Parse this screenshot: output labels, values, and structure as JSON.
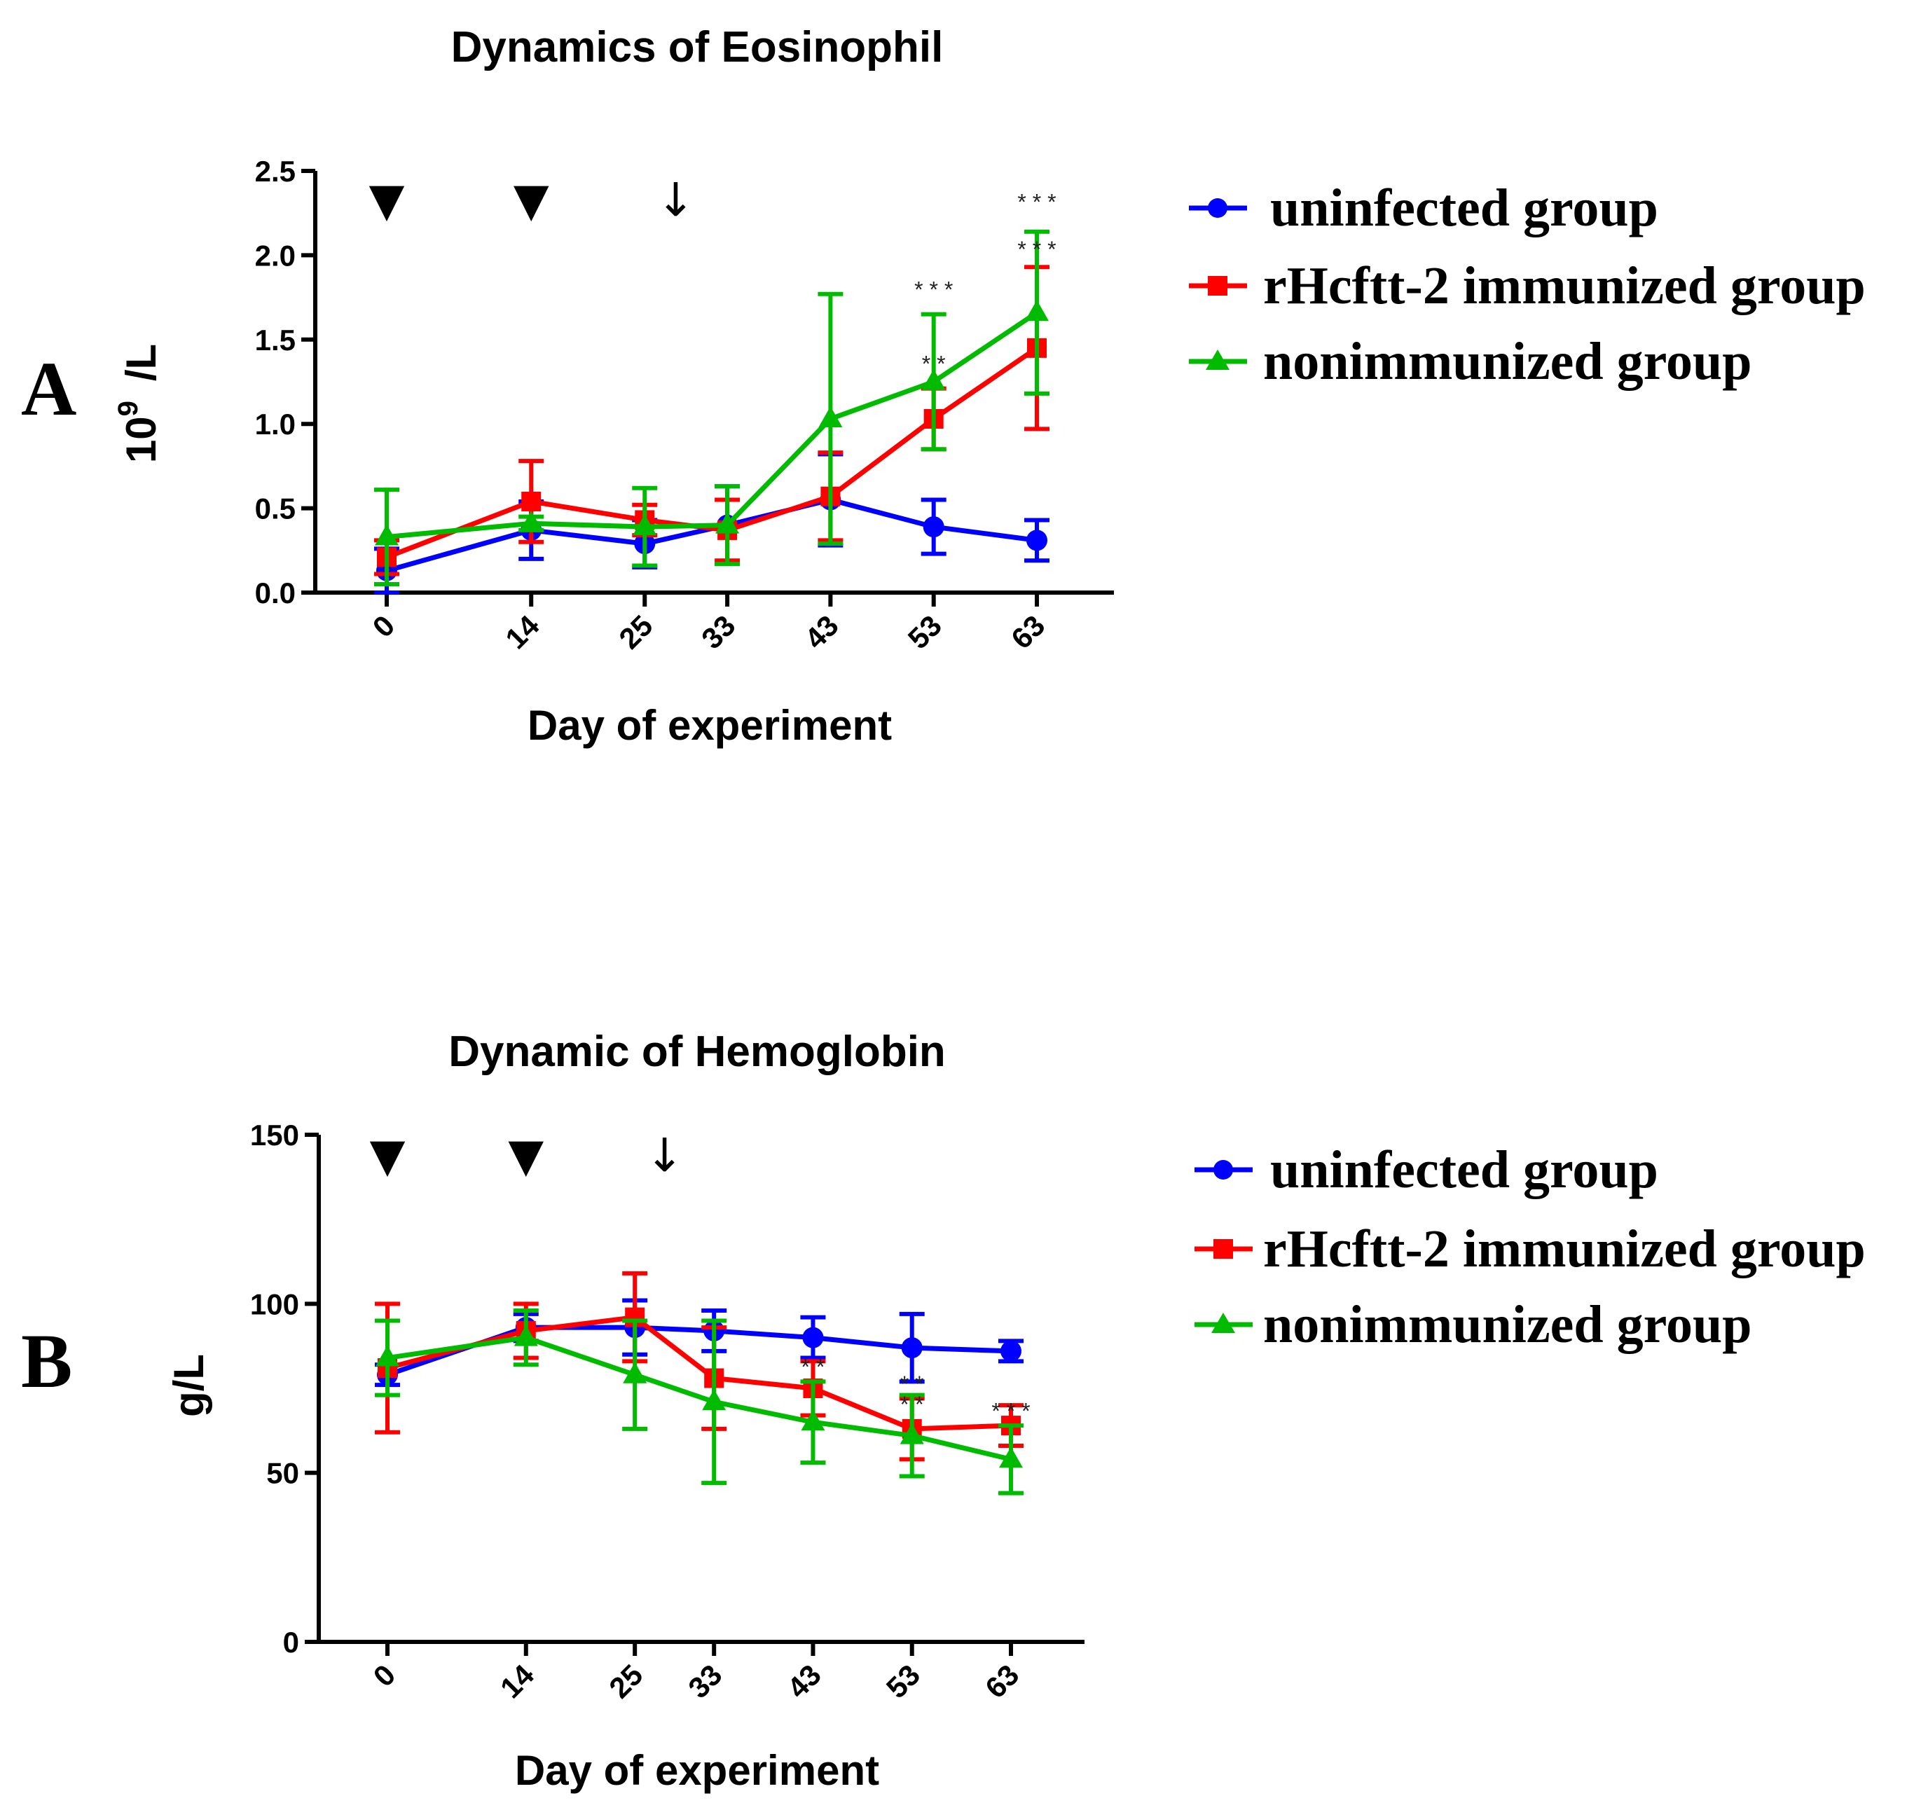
{
  "chart_data": [
    {
      "type": "line",
      "panel": "A",
      "title": "Dynamics of Eosinophil",
      "ylabel_base": "10",
      "ylabel_exp": "9",
      "ylabel_unit": "/L",
      "xlabel": "Day of experiment",
      "categories": [
        "0",
        "14",
        "25",
        "33",
        "43",
        "53",
        "63"
      ],
      "ylim": [
        0,
        2.5
      ],
      "yticks": [
        0.0,
        0.5,
        1.0,
        1.5,
        2.0,
        2.5
      ],
      "ytick_labels": [
        "0.0",
        "0.5",
        "1.0",
        "1.5",
        "2.0",
        "2.5"
      ],
      "series": [
        {
          "name": "uninfected group",
          "color": "#0000ff",
          "marker": "circle",
          "values": [
            0.13,
            0.37,
            0.29,
            0.4,
            0.55,
            0.39,
            0.31
          ],
          "errors": [
            0.13,
            0.17,
            0.14,
            0.23,
            0.27,
            0.16,
            0.12
          ]
        },
        {
          "name": "rHcftt-2 immunized group",
          "color": "#ff0000",
          "marker": "square",
          "values": [
            0.21,
            0.54,
            0.43,
            0.37,
            0.57,
            1.03,
            1.45
          ],
          "errors": [
            0.1,
            0.24,
            0.09,
            0.18,
            0.26,
            0.18,
            0.48
          ]
        },
        {
          "name": "nonimmunized group",
          "color": "#00bb00",
          "marker": "triangle",
          "values": [
            0.33,
            0.41,
            0.39,
            0.4,
            1.03,
            1.25,
            1.66
          ],
          "errors": [
            0.28,
            0.04,
            0.23,
            0.23,
            0.74,
            0.4,
            0.48
          ]
        }
      ],
      "markers": {
        "immunization": [
          "0",
          "14"
        ],
        "infection": "28"
      },
      "arrow_glyphs": {
        "immunization": "▼",
        "infection": "↓"
      },
      "significance": [
        {
          "x": "53",
          "y": 1.75,
          "label": "* * *"
        },
        {
          "x": "53",
          "y": 1.31,
          "label": "* *"
        },
        {
          "x": "63",
          "y": 2.27,
          "label": "* * *"
        },
        {
          "x": "63",
          "y": 1.99,
          "label": "* * *"
        }
      ],
      "legend_position": "right"
    },
    {
      "type": "line",
      "panel": "B",
      "title": "Dynamic of Hemoglobin",
      "ylabel": "g/L",
      "xlabel": "Day of experiment",
      "categories": [
        "0",
        "14",
        "25",
        "33",
        "43",
        "53",
        "63"
      ],
      "ylim": [
        0,
        150
      ],
      "yticks": [
        0,
        50,
        100,
        150
      ],
      "ytick_labels": [
        "0",
        "50",
        "100",
        "150"
      ],
      "series": [
        {
          "name": "uninfected group",
          "color": "#0000ff",
          "marker": "circle",
          "values": [
            79,
            93,
            93,
            92,
            90,
            87,
            86
          ],
          "errors": [
            3,
            4,
            8,
            6,
            6,
            10,
            3
          ]
        },
        {
          "name": "rHcftt-2 immunized group",
          "color": "#ff0000",
          "marker": "square",
          "values": [
            81,
            92,
            96,
            78,
            75,
            63,
            64
          ],
          "errors": [
            19,
            8,
            13,
            15,
            8,
            9,
            6
          ]
        },
        {
          "name": "nonimmunized group",
          "color": "#00bb00",
          "marker": "triangle",
          "values": [
            84,
            90,
            79,
            71,
            65,
            61,
            54
          ],
          "errors": [
            11,
            8,
            16,
            24,
            12,
            12,
            10
          ]
        }
      ],
      "markers": {
        "immunization": [
          "0",
          "14"
        ],
        "infection": "28"
      },
      "arrow_glyphs": {
        "immunization": "▼",
        "infection": "↓"
      },
      "significance": [
        {
          "x": "43",
          "y": 79,
          "label": "* *"
        },
        {
          "x": "53",
          "y": 74,
          "label": "* *"
        },
        {
          "x": "53",
          "y": 68,
          "label": "* *"
        },
        {
          "x": "63",
          "y": 66,
          "label": "* * *"
        }
      ],
      "legend_position": "right"
    }
  ]
}
